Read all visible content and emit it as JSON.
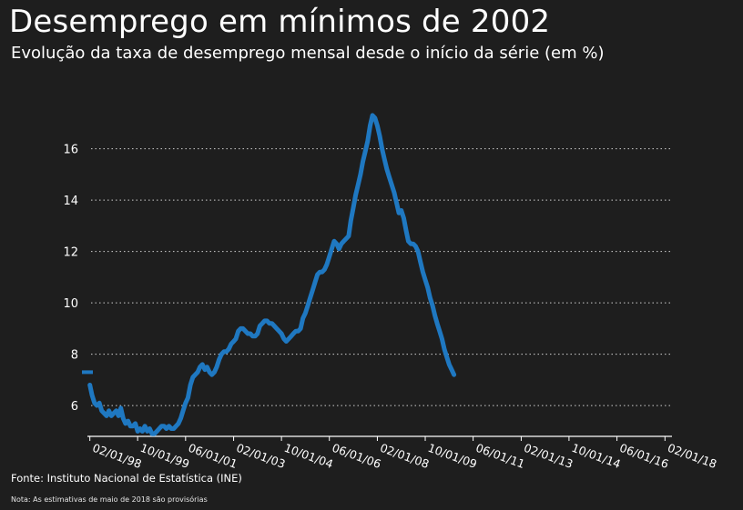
{
  "header": {
    "title": "Desemprego em mínimos de 2002",
    "subtitle": "Evolução da taxa de desemprego mensal desde o início da série (em %)"
  },
  "footer": {
    "source": "Fonte: Instituto Nacional de Estatística (INE)",
    "note": "Nota: As estimativas de maio de 2018 são provisórias"
  },
  "colors": {
    "background": "#1e1e1e",
    "line": "#1f78c1",
    "grid": "#cfcfcf",
    "text": "#ffffff"
  },
  "chart_data": {
    "type": "line",
    "title": "Desemprego em mínimos de 2002",
    "subtitle": "Evolução da taxa de desemprego mensal desde o início da série (em %)",
    "xlabel": "",
    "ylabel": "",
    "xlim": [
      "1998-01-01",
      "2018-05-01"
    ],
    "ylim": [
      4.8,
      17.9
    ],
    "grid": "horizontal dotted",
    "y_ticks": [
      6,
      8,
      10,
      12,
      14,
      16
    ],
    "x_tick_labels": [
      {
        "date": "1998-02-01",
        "label": "02/01/98"
      },
      {
        "date": "1999-10-01",
        "label": "10/01/99"
      },
      {
        "date": "2001-06-01",
        "label": "06/01/01"
      },
      {
        "date": "2003-02-01",
        "label": "02/01/03"
      },
      {
        "date": "2004-10-01",
        "label": "10/01/04"
      },
      {
        "date": "2006-06-01",
        "label": "06/01/06"
      },
      {
        "date": "2008-02-01",
        "label": "02/01/08"
      },
      {
        "date": "2009-10-01",
        "label": "10/01/09"
      },
      {
        "date": "2011-06-01",
        "label": "06/01/11"
      },
      {
        "date": "2013-02-01",
        "label": "02/01/13"
      },
      {
        "date": "2014-10-01",
        "label": "10/01/14"
      },
      {
        "date": "2016-06-01",
        "label": "06/01/16"
      },
      {
        "date": "2018-02-01",
        "label": "02/01/18"
      }
    ],
    "marker": {
      "date": "1998-01-01",
      "value": 7.3
    },
    "series": [
      {
        "color": "#1f78c1",
        "points": [
          [
            "1998-02-01",
            6.8
          ],
          [
            "1998-03-01",
            6.4
          ],
          [
            "1998-04-01",
            6.1
          ],
          [
            "1998-05-01",
            6.0
          ],
          [
            "1998-06-01",
            6.1
          ],
          [
            "1998-07-01",
            5.8
          ],
          [
            "1998-08-01",
            5.7
          ],
          [
            "1998-09-01",
            5.6
          ],
          [
            "1998-10-01",
            5.8
          ],
          [
            "1998-11-01",
            5.6
          ],
          [
            "1998-12-01",
            5.7
          ],
          [
            "1999-01-01",
            5.8
          ],
          [
            "1999-02-01",
            5.6
          ],
          [
            "1999-03-01",
            5.9
          ],
          [
            "1999-04-01",
            5.5
          ],
          [
            "1999-05-01",
            5.3
          ],
          [
            "1999-06-01",
            5.4
          ],
          [
            "1999-07-01",
            5.2
          ],
          [
            "1999-08-01",
            5.2
          ],
          [
            "1999-09-01",
            5.3
          ],
          [
            "1999-10-01",
            5.0
          ],
          [
            "1999-11-01",
            5.1
          ],
          [
            "1999-12-01",
            5.0
          ],
          [
            "2000-01-01",
            5.2
          ],
          [
            "2000-02-01",
            5.0
          ],
          [
            "2000-03-01",
            5.1
          ],
          [
            "2000-04-01",
            4.9
          ],
          [
            "2000-05-01",
            4.9
          ],
          [
            "2000-06-01",
            5.0
          ],
          [
            "2000-07-01",
            5.1
          ],
          [
            "2000-08-01",
            5.2
          ],
          [
            "2000-09-01",
            5.2
          ],
          [
            "2000-10-01",
            5.1
          ],
          [
            "2000-11-01",
            5.2
          ],
          [
            "2000-12-01",
            5.1
          ],
          [
            "2001-01-01",
            5.1
          ],
          [
            "2001-02-01",
            5.2
          ],
          [
            "2001-03-01",
            5.3
          ],
          [
            "2001-04-01",
            5.5
          ],
          [
            "2001-05-01",
            5.8
          ],
          [
            "2001-06-01",
            6.1
          ],
          [
            "2001-07-01",
            6.3
          ],
          [
            "2001-08-01",
            6.8
          ],
          [
            "2001-09-01",
            7.1
          ],
          [
            "2001-10-01",
            7.2
          ],
          [
            "2001-11-01",
            7.3
          ],
          [
            "2001-12-01",
            7.5
          ],
          [
            "2002-01-01",
            7.6
          ],
          [
            "2002-02-01",
            7.4
          ],
          [
            "2002-03-01",
            7.5
          ],
          [
            "2002-04-01",
            7.3
          ],
          [
            "2002-05-01",
            7.2
          ],
          [
            "2002-06-01",
            7.3
          ],
          [
            "2002-07-01",
            7.5
          ],
          [
            "2002-08-01",
            7.8
          ],
          [
            "2002-09-01",
            8.0
          ],
          [
            "2002-10-01",
            8.1
          ],
          [
            "2002-11-01",
            8.1
          ],
          [
            "2002-12-01",
            8.2
          ],
          [
            "2003-01-01",
            8.4
          ],
          [
            "2003-02-01",
            8.5
          ],
          [
            "2003-03-01",
            8.6
          ],
          [
            "2003-04-01",
            8.9
          ],
          [
            "2003-05-01",
            9.0
          ],
          [
            "2003-06-01",
            9.0
          ],
          [
            "2003-07-01",
            8.9
          ],
          [
            "2003-08-01",
            8.8
          ],
          [
            "2003-09-01",
            8.8
          ],
          [
            "2003-10-01",
            8.7
          ],
          [
            "2003-11-01",
            8.7
          ],
          [
            "2003-12-01",
            8.8
          ],
          [
            "2004-01-01",
            9.1
          ],
          [
            "2004-02-01",
            9.2
          ],
          [
            "2004-03-01",
            9.3
          ],
          [
            "2004-04-01",
            9.3
          ],
          [
            "2004-05-01",
            9.2
          ],
          [
            "2004-06-01",
            9.2
          ],
          [
            "2004-07-01",
            9.1
          ],
          [
            "2004-08-01",
            9.0
          ],
          [
            "2004-09-01",
            8.9
          ],
          [
            "2004-10-01",
            8.8
          ],
          [
            "2004-11-01",
            8.6
          ],
          [
            "2004-12-01",
            8.5
          ],
          [
            "2005-01-01",
            8.6
          ],
          [
            "2005-02-01",
            8.7
          ],
          [
            "2005-03-01",
            8.8
          ],
          [
            "2005-04-01",
            8.9
          ],
          [
            "2005-05-01",
            8.9
          ],
          [
            "2005-06-01",
            9.0
          ],
          [
            "2005-07-01",
            9.4
          ],
          [
            "2005-08-01",
            9.6
          ],
          [
            "2005-09-01",
            9.9
          ],
          [
            "2005-10-01",
            10.2
          ],
          [
            "2005-11-01",
            10.5
          ],
          [
            "2005-12-01",
            10.8
          ],
          [
            "2006-01-01",
            11.1
          ],
          [
            "2006-02-01",
            11.2
          ],
          [
            "2006-03-01",
            11.2
          ],
          [
            "2006-04-01",
            11.3
          ],
          [
            "2006-05-01",
            11.5
          ],
          [
            "2006-06-01",
            11.8
          ],
          [
            "2006-07-01",
            12.1
          ],
          [
            "2006-08-01",
            12.4
          ],
          [
            "2006-09-01",
            12.3
          ],
          [
            "2006-10-01",
            12.1
          ],
          [
            "2006-11-01",
            12.3
          ],
          [
            "2006-12-01",
            12.4
          ],
          [
            "2007-01-01",
            12.5
          ],
          [
            "2007-02-01",
            12.6
          ],
          [
            "2007-03-01",
            13.2
          ],
          [
            "2007-04-01",
            13.7
          ],
          [
            "2007-05-01",
            14.2
          ],
          [
            "2007-06-01",
            14.6
          ],
          [
            "2007-07-01",
            15.0
          ],
          [
            "2007-08-01",
            15.5
          ],
          [
            "2007-09-01",
            15.9
          ],
          [
            "2007-10-01",
            16.3
          ],
          [
            "2007-11-01",
            16.9
          ],
          [
            "2007-12-01",
            17.3
          ],
          [
            "2008-01-01",
            17.2
          ],
          [
            "2008-02-01",
            16.9
          ],
          [
            "2008-03-01",
            16.5
          ],
          [
            "2008-04-01",
            16.0
          ],
          [
            "2008-05-01",
            15.6
          ],
          [
            "2008-06-01",
            15.2
          ],
          [
            "2008-07-01",
            14.9
          ],
          [
            "2008-08-01",
            14.6
          ],
          [
            "2008-09-01",
            14.3
          ],
          [
            "2008-10-01",
            13.9
          ],
          [
            "2008-11-01",
            13.5
          ],
          [
            "2008-12-01",
            13.6
          ],
          [
            "2009-01-01",
            13.3
          ],
          [
            "2009-02-01",
            12.8
          ],
          [
            "2009-03-01",
            12.4
          ],
          [
            "2009-04-01",
            12.3
          ],
          [
            "2009-05-01",
            12.3
          ],
          [
            "2009-06-01",
            12.2
          ],
          [
            "2009-07-01",
            12.0
          ],
          [
            "2009-08-01",
            11.6
          ],
          [
            "2009-09-01",
            11.2
          ],
          [
            "2009-10-01",
            10.9
          ],
          [
            "2009-11-01",
            10.6
          ],
          [
            "2009-12-01",
            10.2
          ],
          [
            "2010-01-01",
            9.9
          ],
          [
            "2010-02-01",
            9.5
          ],
          [
            "2010-03-01",
            9.2
          ],
          [
            "2010-04-01",
            8.9
          ],
          [
            "2010-05-01",
            8.6
          ],
          [
            "2010-06-01",
            8.2
          ],
          [
            "2010-07-01",
            7.9
          ],
          [
            "2010-08-01",
            7.6
          ],
          [
            "2010-09-01",
            7.4
          ],
          [
            "2010-10-01",
            7.2
          ]
        ]
      }
    ]
  }
}
